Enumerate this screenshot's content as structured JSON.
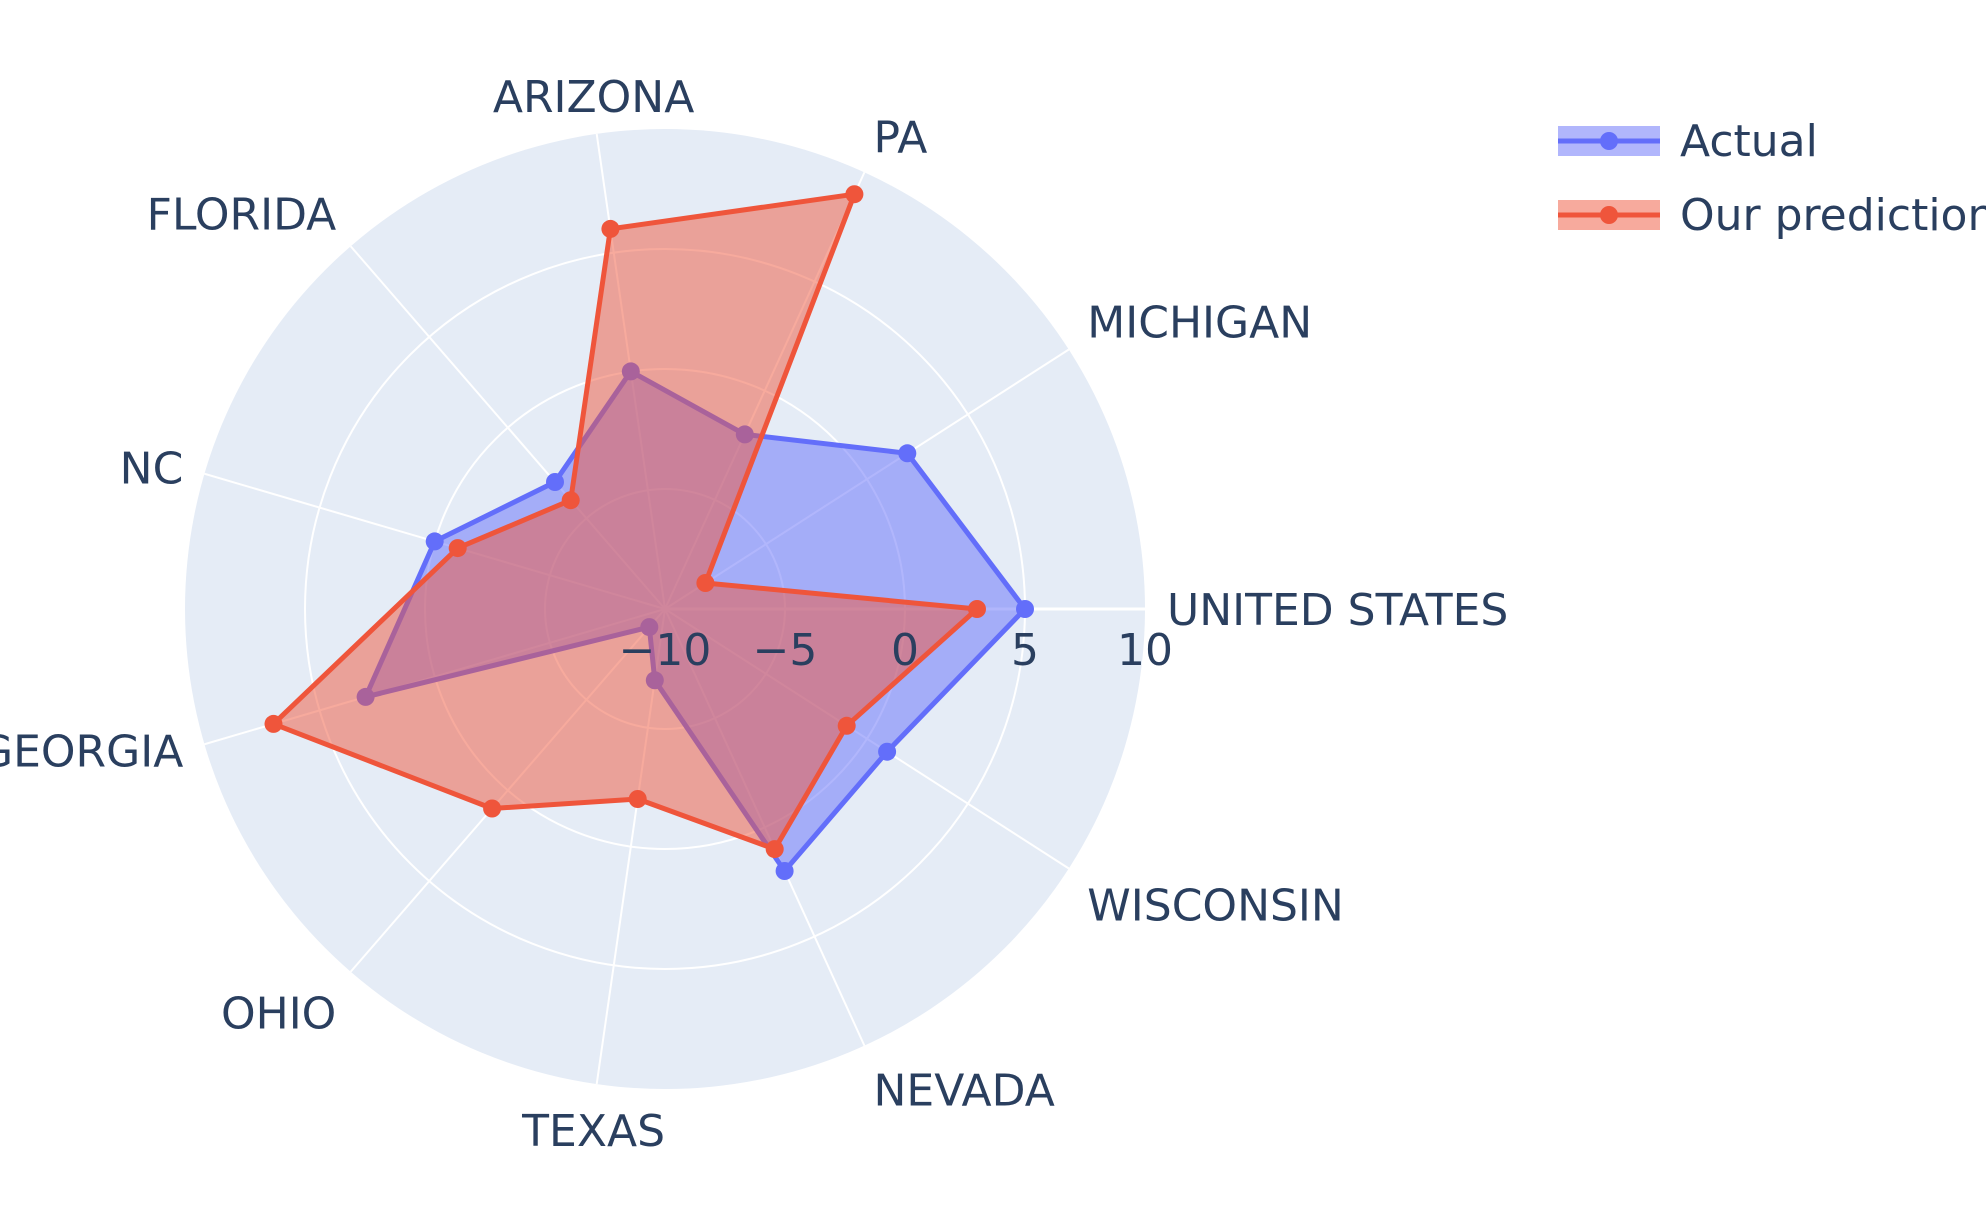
{
  "chart_data": {
    "type": "radar",
    "title": "",
    "categories": [
      "UNITED STATES",
      "MICHIGAN",
      "PA",
      "ARIZONA",
      "FLORIDA",
      "NC",
      "GEORGIA",
      "OHIO",
      "TEXAS",
      "NEVADA",
      "WISCONSIN"
    ],
    "radial_range": [
      -10,
      10
    ],
    "radial_ticks": [
      "−10",
      "−5",
      "0",
      "5",
      "10"
    ],
    "grid": true,
    "legend_position": "top-right",
    "series": [
      {
        "name": "Actual",
        "color": "#636efa",
        "values": [
          5,
          2,
          -2,
          0,
          -3,
          0,
          3,
          -9,
          -7,
          2,
          1
        ]
      },
      {
        "name": "Our prediction",
        "color": "#ef553b",
        "values": [
          3,
          -8,
          9,
          6,
          -4,
          -1,
          7,
          1,
          -2,
          1,
          -1
        ]
      }
    ]
  }
}
